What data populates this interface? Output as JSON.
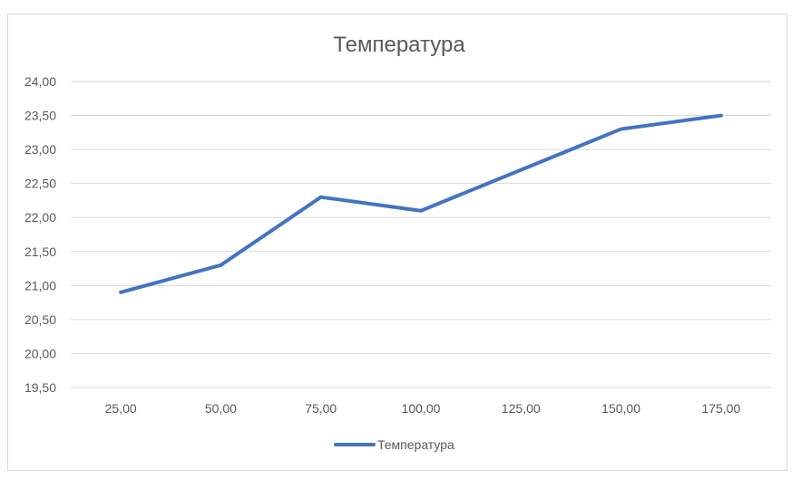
{
  "chart_data": {
    "type": "line",
    "title": "Температура",
    "x": [
      "25,00",
      "50,00",
      "75,00",
      "100,00",
      "125,00",
      "150,00",
      "175,00"
    ],
    "x_values": [
      25,
      50,
      75,
      100,
      125,
      150,
      175
    ],
    "series": [
      {
        "name": "Температура",
        "values": [
          20.9,
          21.3,
          22.3,
          22.1,
          22.7,
          23.3,
          23.5
        ],
        "color": "#4472C4"
      }
    ],
    "y_ticks": [
      "19,50",
      "20,00",
      "20,50",
      "21,00",
      "21,50",
      "22,00",
      "22,50",
      "23,00",
      "23,50",
      "24,00"
    ],
    "ylim": [
      19.5,
      24.0
    ],
    "grid": true,
    "gridline_color": "#d9d9d9",
    "legend": "bottom"
  }
}
